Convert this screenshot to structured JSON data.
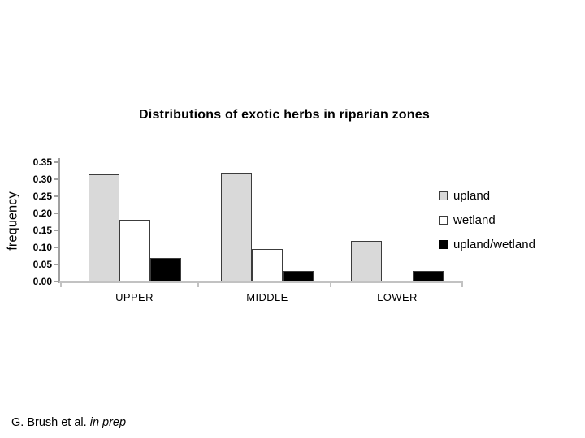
{
  "caption": {
    "text": "G. Brush et al. ",
    "italic": "in prep"
  },
  "colors": {
    "background": "#ffffff",
    "bar_border": "#3c3c3c",
    "y_axis": "#a0a0a0",
    "x_axis": "#c2c2c2",
    "text": "#000000"
  },
  "chart_data": {
    "type": "bar",
    "title": "Distributions of exotic herbs in riparian zones",
    "xlabel": "",
    "ylabel": "frequency",
    "categories": [
      "UPPER",
      "MIDDLE",
      "LOWER"
    ],
    "series": [
      {
        "name": "upland",
        "color": "#d9d9d9",
        "values": [
          0.315,
          0.32,
          0.12
        ]
      },
      {
        "name": "wetland",
        "color": "#ffffff",
        "values": [
          0.18,
          0.095,
          0
        ]
      },
      {
        "name": "upland/wetland",
        "color": "#000000",
        "values": [
          0.068,
          0.03,
          0.03
        ]
      }
    ],
    "ylim": [
      0,
      0.35
    ],
    "ytick_labels": [
      "0.35",
      "0.30",
      "0.25",
      "0.20",
      "0.15",
      "0.10",
      "0.05",
      "0.00"
    ],
    "grid": false,
    "legend_position": "right"
  }
}
